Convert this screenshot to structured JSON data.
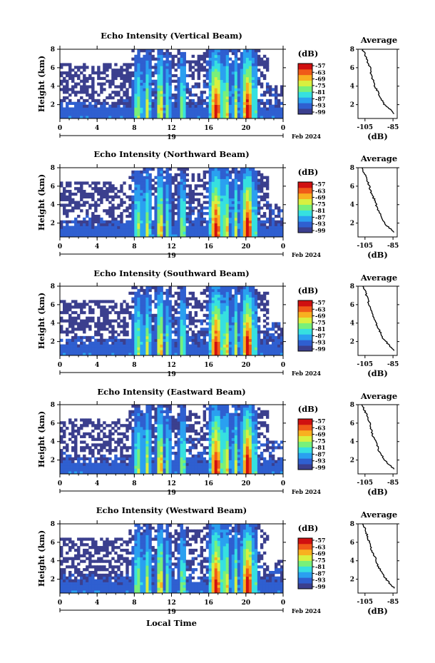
{
  "chart_data": [
    {
      "type": "heatmap",
      "title": "Echo Intensity (Vertical Beam)",
      "ylabel": "Height (km)",
      "ylim": [
        0.5,
        8
      ],
      "y_ticks": [
        "2",
        "4",
        "6",
        "8"
      ],
      "xlim": [
        0,
        24
      ],
      "x_ticks": [
        "0",
        "4",
        "8",
        "12",
        "16",
        "20",
        "0"
      ],
      "date_label": "19",
      "month_label": "Feb 2024",
      "colorbar": {
        "label": "(dB)",
        "min": -99,
        "max": -57,
        "ticks": [
          "-57",
          "-63",
          "-69",
          "-75",
          "-81",
          "-87",
          "-93",
          "-99"
        ]
      },
      "average_profile": {
        "title": "Average",
        "xlabel": "(dB)",
        "x_ticks": [
          "-105",
          "-85"
        ],
        "y_ticks": [
          "2",
          "4",
          "6",
          "8"
        ],
        "xlim": [
          -110,
          -82
        ],
        "ylim": [
          0.5,
          8
        ],
        "height": [
          1.0,
          1.5,
          2.0,
          2.5,
          3.0,
          3.5,
          4.0,
          4.5,
          5.0,
          5.5,
          6.0,
          6.5,
          7.0,
          7.5,
          8.0
        ],
        "value": [
          -84,
          -87,
          -91,
          -93,
          -95,
          -96,
          -98,
          -99,
          -100,
          -101,
          -101,
          -103,
          -104,
          -105,
          -107
        ]
      }
    },
    {
      "type": "heatmap",
      "title": "Echo Intensity (Northward Beam)",
      "ylabel": "Height (km)",
      "ylim": [
        0.5,
        8
      ],
      "y_ticks": [
        "2",
        "4",
        "6",
        "8"
      ],
      "xlim": [
        0,
        24
      ],
      "x_ticks": [
        "0",
        "4",
        "8",
        "12",
        "16",
        "20",
        "0"
      ],
      "date_label": "19",
      "month_label": "Feb 2024",
      "colorbar": {
        "label": "(dB)",
        "min": -99,
        "max": -57,
        "ticks": [
          "-57",
          "-63",
          "-69",
          "-75",
          "-81",
          "-87",
          "-93",
          "-99"
        ]
      },
      "average_profile": {
        "title": "Average",
        "xlabel": "(dB)",
        "x_ticks": [
          "-105",
          "-85"
        ],
        "y_ticks": [
          "2",
          "4",
          "6",
          "8"
        ],
        "xlim": [
          -110,
          -82
        ],
        "ylim": [
          0.5,
          8
        ],
        "height": [
          1.0,
          1.5,
          2.0,
          2.5,
          3.0,
          3.5,
          4.0,
          4.5,
          5.0,
          5.5,
          6.0,
          6.5,
          7.0,
          7.5,
          8.0
        ],
        "value": [
          -84,
          -88,
          -91,
          -93,
          -94,
          -96,
          -97,
          -98,
          -100,
          -101,
          -102,
          -103,
          -104,
          -106,
          -107
        ]
      }
    },
    {
      "type": "heatmap",
      "title": "Echo Intensity (Southward Beam)",
      "ylabel": "Height (km)",
      "ylim": [
        0.5,
        8
      ],
      "y_ticks": [
        "2",
        "4",
        "6",
        "8"
      ],
      "xlim": [
        0,
        24
      ],
      "x_ticks": [
        "0",
        "4",
        "8",
        "12",
        "16",
        "20",
        "0"
      ],
      "date_label": "19",
      "month_label": "Feb 2024",
      "colorbar": {
        "label": "(dB)",
        "min": -99,
        "max": -57,
        "ticks": [
          "-57",
          "-63",
          "-69",
          "-75",
          "-81",
          "-87",
          "-93",
          "-99"
        ]
      },
      "average_profile": {
        "title": "Average",
        "xlabel": "(dB)",
        "x_ticks": [
          "-105",
          "-85"
        ],
        "y_ticks": [
          "2",
          "4",
          "6",
          "8"
        ],
        "xlim": [
          -110,
          -82
        ],
        "ylim": [
          0.5,
          8
        ],
        "height": [
          1.0,
          1.5,
          2.0,
          2.5,
          3.0,
          3.5,
          4.0,
          4.5,
          5.0,
          5.5,
          6.0,
          6.5,
          7.0,
          7.5,
          8.0
        ],
        "value": [
          -84,
          -87,
          -90,
          -93,
          -94,
          -96,
          -97,
          -99,
          -100,
          -101,
          -102,
          -103,
          -104,
          -105,
          -107
        ]
      }
    },
    {
      "type": "heatmap",
      "title": "Echo Intensity (Eastward Beam)",
      "ylabel": "Height (km)",
      "ylim": [
        0.5,
        8
      ],
      "y_ticks": [
        "2",
        "4",
        "6",
        "8"
      ],
      "xlim": [
        0,
        24
      ],
      "x_ticks": [
        "0",
        "4",
        "8",
        "12",
        "16",
        "20",
        "0"
      ],
      "date_label": "19",
      "month_label": "Feb 2024",
      "colorbar": {
        "label": "(dB)",
        "min": -99,
        "max": -57,
        "ticks": [
          "-57",
          "-63",
          "-69",
          "-75",
          "-81",
          "-87",
          "-93",
          "-99"
        ]
      },
      "average_profile": {
        "title": "Average",
        "xlabel": "(dB)",
        "x_ticks": [
          "-105",
          "-85"
        ],
        "y_ticks": [
          "2",
          "4",
          "6",
          "8"
        ],
        "xlim": [
          -110,
          -82
        ],
        "ylim": [
          0.5,
          8
        ],
        "height": [
          1.0,
          1.5,
          2.0,
          2.5,
          3.0,
          3.5,
          4.0,
          4.5,
          5.0,
          5.5,
          6.0,
          6.5,
          7.0,
          7.5,
          8.0
        ],
        "value": [
          -84,
          -88,
          -91,
          -93,
          -95,
          -96,
          -97,
          -99,
          -100,
          -101,
          -101,
          -103,
          -104,
          -106,
          -107
        ]
      }
    },
    {
      "type": "heatmap",
      "title": "Echo Intensity (Westward Beam)",
      "ylabel": "Height (km)",
      "ylim": [
        0.5,
        8
      ],
      "y_ticks": [
        "2",
        "4",
        "6",
        "8"
      ],
      "xlim": [
        0,
        24
      ],
      "x_ticks": [
        "0",
        "4",
        "8",
        "12",
        "16",
        "20",
        "0"
      ],
      "date_label": "19",
      "month_label": "Feb 2024",
      "xlabel": "Local Time",
      "colorbar": {
        "label": "(dB)",
        "min": -99,
        "max": -57,
        "ticks": [
          "-57",
          "-63",
          "-69",
          "-75",
          "-81",
          "-87",
          "-93",
          "-99"
        ]
      },
      "average_profile": {
        "title": "Average",
        "xlabel": "(dB)",
        "x_ticks": [
          "-105",
          "-85"
        ],
        "y_ticks": [
          "2",
          "4",
          "6",
          "8"
        ],
        "xlim": [
          -110,
          -82
        ],
        "ylim": [
          0.5,
          8
        ],
        "height": [
          1.0,
          1.5,
          2.0,
          2.5,
          3.0,
          3.5,
          4.0,
          4.5,
          5.0,
          5.5,
          6.0,
          6.5,
          7.0,
          7.5,
          8.0
        ],
        "value": [
          -84,
          -87,
          -90,
          -92,
          -94,
          -96,
          -97,
          -98,
          -100,
          -101,
          -102,
          -103,
          -104,
          -105,
          -107
        ]
      }
    }
  ],
  "colors": {
    "colormap": [
      "#3b3f8e",
      "#2f5fd0",
      "#2aa0f0",
      "#36e0e0",
      "#78f07a",
      "#d8f040",
      "#f8b020",
      "#f05a18",
      "#d01010"
    ],
    "axis": "#000000"
  }
}
